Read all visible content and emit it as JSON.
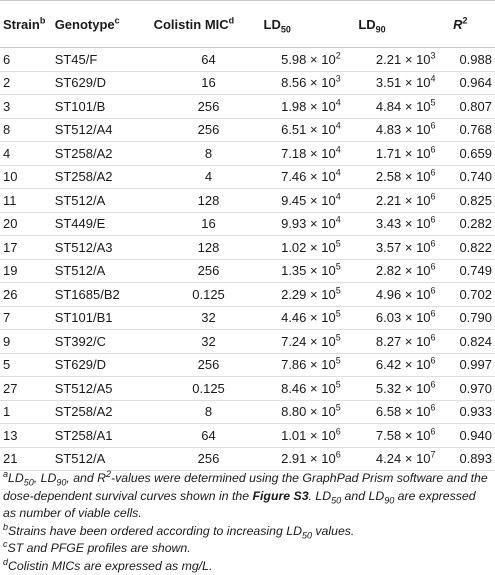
{
  "headers": {
    "strain": "Strain",
    "strain_note": "b",
    "genotype": "Genotype",
    "genotype_note": "c",
    "mic": "Colistin MIC",
    "mic_note": "d",
    "ld50_base": "LD",
    "ld50_sub": "50",
    "ld90_base": "LD",
    "ld90_sub": "90",
    "r2_base": "R",
    "r2_sup": "2"
  },
  "times": "×",
  "rows": [
    {
      "strain": "6",
      "genotype": "ST45/F",
      "mic": "64",
      "ld50": [
        "5.98",
        "2"
      ],
      "ld90": [
        "2.21",
        "3"
      ],
      "r2": "0.988"
    },
    {
      "strain": "2",
      "genotype": "ST629/D",
      "mic": "16",
      "ld50": [
        "8.56",
        "3"
      ],
      "ld90": [
        "3.51",
        "4"
      ],
      "r2": "0.964"
    },
    {
      "strain": "3",
      "genotype": "ST101/B",
      "mic": "256",
      "ld50": [
        "1.98",
        "4"
      ],
      "ld90": [
        "4.84",
        "5"
      ],
      "r2": "0.807"
    },
    {
      "strain": "8",
      "genotype": "ST512/A4",
      "mic": "256",
      "ld50": [
        "6.51",
        "4"
      ],
      "ld90": [
        "4.83",
        "6"
      ],
      "r2": "0.768"
    },
    {
      "strain": "4",
      "genotype": "ST258/A2",
      "mic": "8",
      "ld50": [
        "7.18",
        "4"
      ],
      "ld90": [
        "1.71",
        "6"
      ],
      "r2": "0.659"
    },
    {
      "strain": "10",
      "genotype": "ST258/A2",
      "mic": "4",
      "ld50": [
        "7.46",
        "4"
      ],
      "ld90": [
        "2.58",
        "6"
      ],
      "r2": "0.740"
    },
    {
      "strain": "11",
      "genotype": "ST512/A",
      "mic": "128",
      "ld50": [
        "9.45",
        "4"
      ],
      "ld90": [
        "2.21",
        "6"
      ],
      "r2": "0.825"
    },
    {
      "strain": "20",
      "genotype": "ST449/E",
      "mic": "16",
      "ld50": [
        "9.93",
        "4"
      ],
      "ld90": [
        "3.43",
        "6"
      ],
      "r2": "0.282"
    },
    {
      "strain": "17",
      "genotype": "ST512/A3",
      "mic": "128",
      "ld50": [
        "1.02",
        "5"
      ],
      "ld90": [
        "3.57",
        "6"
      ],
      "r2": "0.822"
    },
    {
      "strain": "19",
      "genotype": "ST512/A",
      "mic": "256",
      "ld50": [
        "1.35",
        "5"
      ],
      "ld90": [
        "2.82",
        "6"
      ],
      "r2": "0.749"
    },
    {
      "strain": "26",
      "genotype": "ST1685/B2",
      "mic": "0.125",
      "ld50": [
        "2.29",
        "5"
      ],
      "ld90": [
        "4.96",
        "6"
      ],
      "r2": "0.702"
    },
    {
      "strain": "7",
      "genotype": "ST101/B1",
      "mic": "32",
      "ld50": [
        "4.46",
        "5"
      ],
      "ld90": [
        "6.03",
        "6"
      ],
      "r2": "0.790"
    },
    {
      "strain": "9",
      "genotype": "ST392/C",
      "mic": "32",
      "ld50": [
        "7.24",
        "5"
      ],
      "ld90": [
        "8.27",
        "6"
      ],
      "r2": "0.824"
    },
    {
      "strain": "5",
      "genotype": "ST629/D",
      "mic": "256",
      "ld50": [
        "7.86",
        "5"
      ],
      "ld90": [
        "6.42",
        "6"
      ],
      "r2": "0.997"
    },
    {
      "strain": "27",
      "genotype": "ST512/A5",
      "mic": "0.125",
      "ld50": [
        "8.46",
        "5"
      ],
      "ld90": [
        "5.32",
        "6"
      ],
      "r2": "0.970"
    },
    {
      "strain": "1",
      "genotype": "ST258/A2",
      "mic": "8",
      "ld50": [
        "8.80",
        "5"
      ],
      "ld90": [
        "6.58",
        "6"
      ],
      "r2": "0.933"
    },
    {
      "strain": "13",
      "genotype": "ST258/A1",
      "mic": "64",
      "ld50": [
        "1.01",
        "6"
      ],
      "ld90": [
        "7.58",
        "6"
      ],
      "r2": "0.940"
    },
    {
      "strain": "21",
      "genotype": "ST512/A",
      "mic": "256",
      "ld50": [
        "2.91",
        "6"
      ],
      "ld90": [
        "4.24",
        "7"
      ],
      "r2": "0.893"
    }
  ],
  "footnotes": {
    "a": {
      "mark": "a",
      "ld": "LD",
      "s50": "50",
      "s90": "90",
      "r": "R",
      "two": "2",
      "t1": ", ",
      "t2": ", and ",
      "t3": "-values were determined using the GraphPad Prism software and the dose-dependent survival curves shown in the ",
      "figure": "Figure S3",
      "t4": ". ",
      "t5": " and ",
      "t6": " are expressed as number of viable cells."
    },
    "b": {
      "mark": "b",
      "text": "Strains have been ordered according to increasing LD",
      "sub": "50",
      "end": " values."
    },
    "c": {
      "mark": "c",
      "text": "ST and PFGE profiles are shown."
    },
    "d": {
      "mark": "d",
      "text": "Colistin MICs are expressed as mg/L."
    }
  }
}
